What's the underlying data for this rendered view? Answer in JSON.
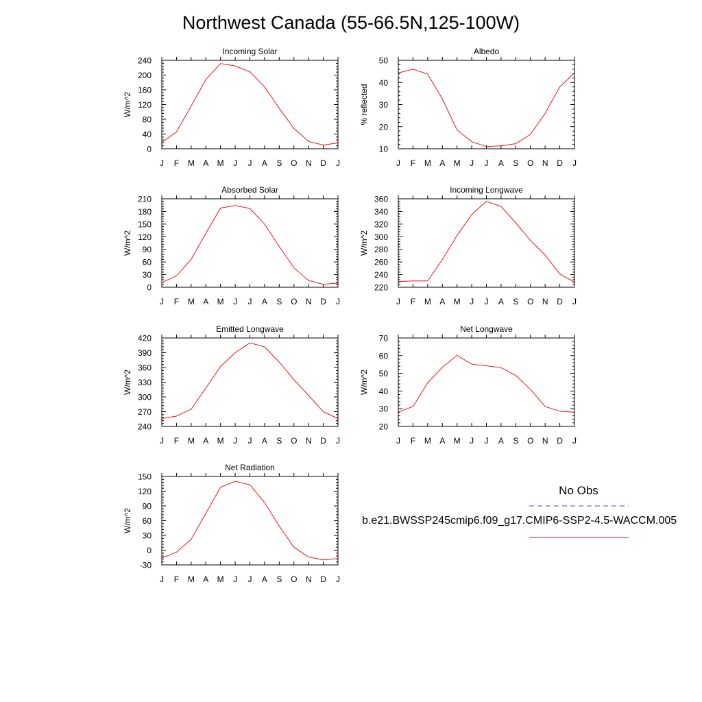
{
  "title": "Northwest Canada (55-66.5N,125-100W)",
  "colors": {
    "model_line": "#ee1111",
    "obs_line": "#4040ff",
    "axis": "#000000"
  },
  "legend": {
    "obs_label": "No Obs",
    "model_label": "b.e21.BWSSP245cmip6.f09_g17.CMIP6-SSP2-4.5-WACCM.005"
  },
  "chart_data": [
    {
      "type": "line",
      "title": "Incoming Solar",
      "ylabel": "W/m^2",
      "categories": [
        "J",
        "F",
        "M",
        "A",
        "M",
        "J",
        "J",
        "A",
        "S",
        "O",
        "N",
        "D",
        "J"
      ],
      "ylim": [
        0,
        240
      ],
      "yticks": [
        0,
        40,
        80,
        120,
        160,
        200,
        240
      ],
      "values": [
        17,
        46,
        116,
        188,
        231,
        225,
        209,
        168,
        110,
        55,
        20,
        10,
        16
      ]
    },
    {
      "type": "line",
      "title": "Albedo",
      "ylabel": "% reflected",
      "categories": [
        "J",
        "F",
        "M",
        "A",
        "M",
        "J",
        "J",
        "A",
        "S",
        "O",
        "N",
        "D",
        "J"
      ],
      "ylim": [
        10,
        50
      ],
      "yticks": [
        10,
        20,
        30,
        40,
        50
      ],
      "values": [
        44.3,
        46,
        43.8,
        32.5,
        18.5,
        13.2,
        11.0,
        11.3,
        12.3,
        16.5,
        26,
        38,
        44.3
      ]
    },
    {
      "type": "line",
      "title": "Absorbed Solar",
      "ylabel": "W/m^2",
      "categories": [
        "J",
        "F",
        "M",
        "A",
        "M",
        "J",
        "J",
        "A",
        "S",
        "O",
        "N",
        "D",
        "J"
      ],
      "ylim": [
        0,
        210
      ],
      "yticks": [
        0,
        30,
        60,
        90,
        120,
        150,
        180,
        210
      ],
      "values": [
        11,
        27,
        66,
        128,
        188,
        194,
        187,
        150,
        97,
        46,
        16,
        7,
        10
      ]
    },
    {
      "type": "line",
      "title": "Incoming Longwave",
      "ylabel": "W/m^2",
      "categories": [
        "J",
        "F",
        "M",
        "A",
        "M",
        "J",
        "J",
        "A",
        "S",
        "O",
        "N",
        "D",
        "J"
      ],
      "ylim": [
        220,
        360
      ],
      "yticks": [
        220,
        240,
        260,
        280,
        300,
        320,
        340,
        360
      ],
      "values": [
        229,
        230,
        230,
        264,
        302,
        335,
        356,
        348,
        322,
        294,
        271,
        241,
        228
      ]
    },
    {
      "type": "line",
      "title": "Emitted Longwave",
      "ylabel": "W/m^2",
      "categories": [
        "J",
        "F",
        "M",
        "A",
        "M",
        "J",
        "J",
        "A",
        "S",
        "O",
        "N",
        "D",
        "J"
      ],
      "ylim": [
        240,
        420
      ],
      "yticks": [
        240,
        270,
        300,
        330,
        360,
        390,
        420
      ],
      "values": [
        256,
        261,
        275,
        318,
        362,
        390,
        410,
        402,
        371,
        335,
        303,
        270,
        256
      ]
    },
    {
      "type": "line",
      "title": "Net Longwave",
      "ylabel": "W/m^2",
      "categories": [
        "J",
        "F",
        "M",
        "A",
        "M",
        "J",
        "J",
        "A",
        "S",
        "O",
        "N",
        "D",
        "J"
      ],
      "ylim": [
        20,
        70
      ],
      "yticks": [
        20,
        30,
        40,
        50,
        60,
        70
      ],
      "values": [
        28.2,
        31.2,
        44.6,
        53.4,
        60.2,
        55.2,
        54.3,
        53.2,
        48.8,
        41,
        31.2,
        28.6,
        28
      ]
    },
    {
      "type": "line",
      "title": "Net Radiation",
      "ylabel": "W/m^2",
      "categories": [
        "J",
        "F",
        "M",
        "A",
        "M",
        "J",
        "J",
        "A",
        "S",
        "O",
        "N",
        "D",
        "J"
      ],
      "ylim": [
        -30,
        150
      ],
      "yticks": [
        -30,
        0,
        30,
        60,
        90,
        120,
        150
      ],
      "values": [
        -16,
        -4,
        22,
        75,
        128,
        140,
        133,
        97,
        49,
        6,
        -14,
        -20,
        -17
      ]
    }
  ]
}
